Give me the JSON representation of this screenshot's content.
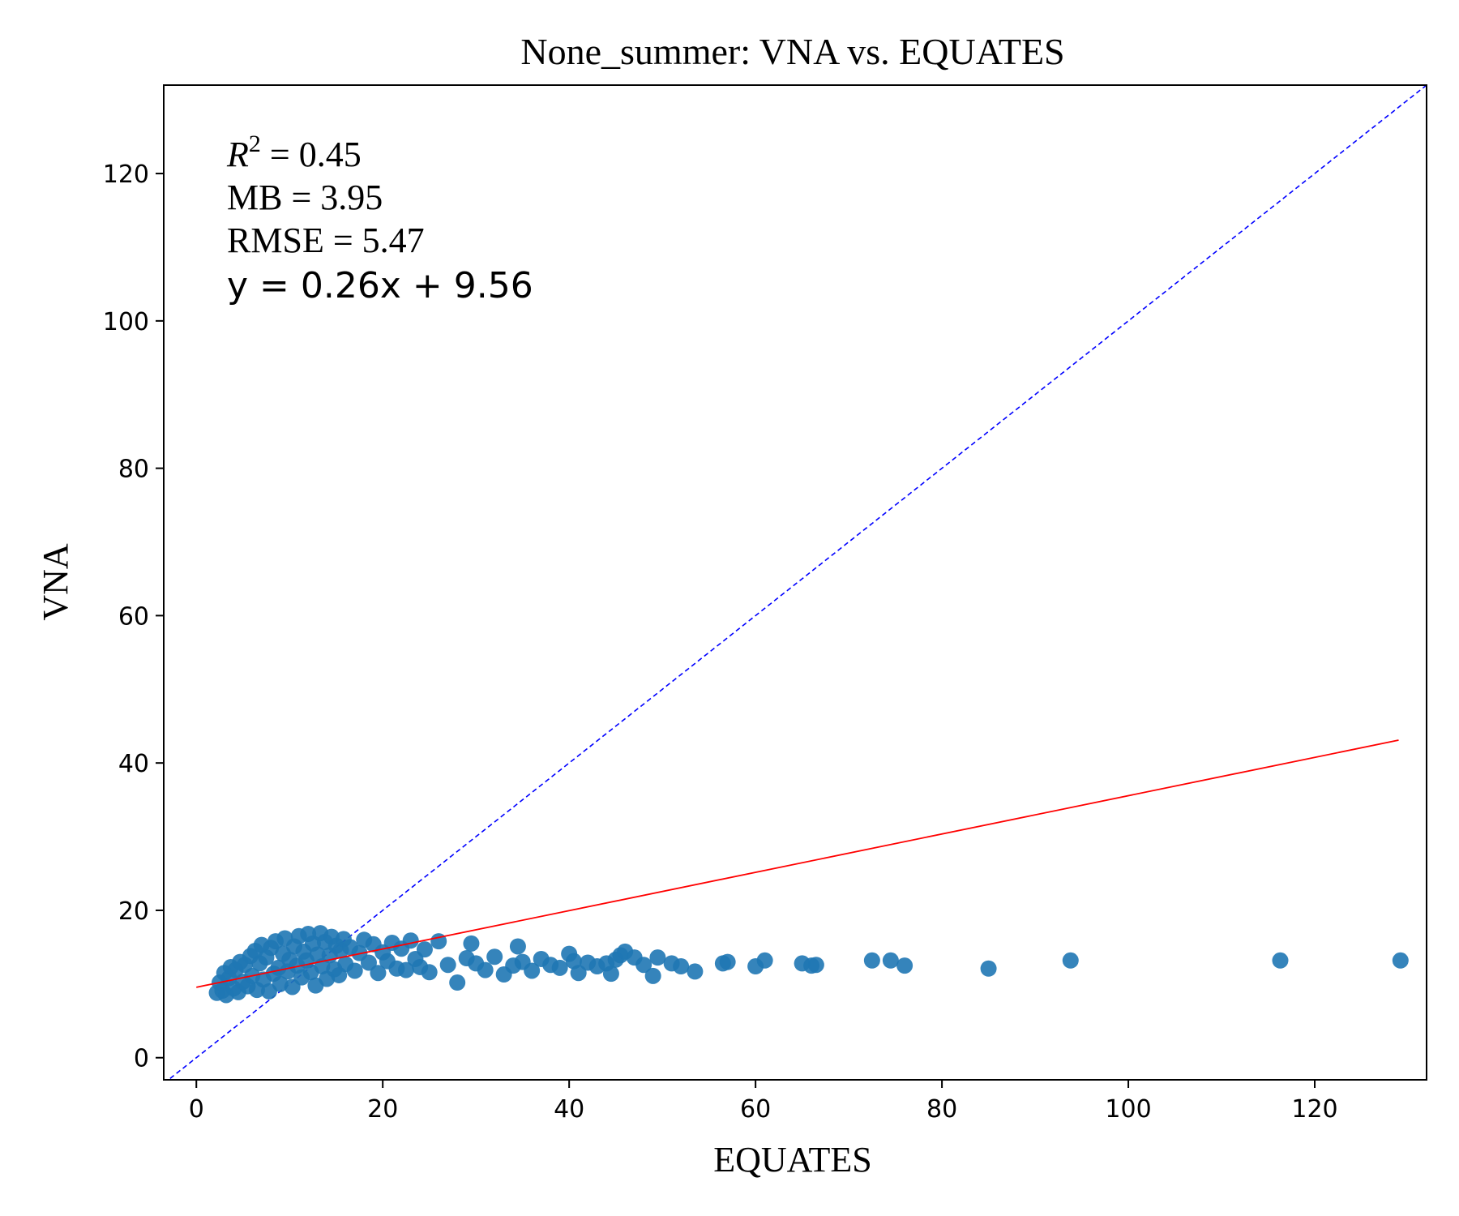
{
  "chart_data": {
    "type": "scatter",
    "title": "None_summer: VNA vs. EQUATES",
    "xlabel": "EQUATES",
    "ylabel": "VNA",
    "xlim": [
      -3.5,
      132
    ],
    "ylim": [
      -3,
      132
    ],
    "x_ticks": [
      0,
      20,
      40,
      60,
      80,
      100,
      120
    ],
    "y_ticks": [
      0,
      20,
      40,
      60,
      80,
      100,
      120
    ],
    "grid": false,
    "stats": {
      "r2_label": "R",
      "r2_sup": "2",
      "r2_value": " = 0.45",
      "mb": "MB = 3.95",
      "rmse": "RMSE = 5.47",
      "equation": "y = 0.26x + 9.56"
    },
    "regression": {
      "slope": 0.26,
      "intercept": 9.56,
      "x_range": [
        0,
        129
      ],
      "color": "#ff0000"
    },
    "one_to_one": {
      "color": "#0000ff",
      "style": "dashed"
    },
    "series": [
      {
        "marker_color": "#1f77b4",
        "points": [
          [
            2.2,
            8.8
          ],
          [
            2.5,
            10.2
          ],
          [
            2.8,
            9.1
          ],
          [
            3.0,
            11.5
          ],
          [
            3.2,
            8.5
          ],
          [
            3.5,
            10.8
          ],
          [
            3.7,
            12.3
          ],
          [
            4.0,
            9.4
          ],
          [
            4.2,
            11.9
          ],
          [
            4.5,
            8.9
          ],
          [
            4.7,
            13.0
          ],
          [
            5.0,
            10.3
          ],
          [
            5.2,
            12.6
          ],
          [
            5.5,
            9.7
          ],
          [
            5.8,
            13.8
          ],
          [
            6.0,
            11.1
          ],
          [
            6.3,
            14.5
          ],
          [
            6.5,
            9.2
          ],
          [
            6.8,
            12.8
          ],
          [
            7.0,
            15.3
          ],
          [
            7.2,
            10.6
          ],
          [
            7.5,
            13.6
          ],
          [
            7.8,
            9.0
          ],
          [
            8.0,
            14.9
          ],
          [
            8.3,
            11.4
          ],
          [
            8.5,
            15.8
          ],
          [
            8.8,
            12.2
          ],
          [
            9.0,
            10.0
          ],
          [
            9.3,
            14.1
          ],
          [
            9.5,
            16.2
          ],
          [
            9.8,
            11.7
          ],
          [
            10.0,
            13.3
          ],
          [
            10.3,
            9.6
          ],
          [
            10.5,
            15.1
          ],
          [
            10.8,
            12.5
          ],
          [
            11.0,
            16.5
          ],
          [
            11.3,
            10.9
          ],
          [
            11.5,
            14.4
          ],
          [
            11.8,
            13.2
          ],
          [
            12.0,
            16.8
          ],
          [
            12.3,
            11.6
          ],
          [
            12.5,
            15.5
          ],
          [
            12.8,
            9.8
          ],
          [
            13.0,
            14.0
          ],
          [
            13.3,
            16.9
          ],
          [
            13.5,
            12.4
          ],
          [
            13.8,
            15.7
          ],
          [
            14.0,
            10.7
          ],
          [
            14.3,
            13.9
          ],
          [
            14.5,
            16.4
          ],
          [
            14.8,
            12.0
          ],
          [
            15.0,
            15.2
          ],
          [
            15.3,
            11.2
          ],
          [
            15.5,
            14.6
          ],
          [
            15.8,
            16.1
          ],
          [
            16.0,
            12.7
          ],
          [
            16.5,
            15.0
          ],
          [
            17.0,
            11.8
          ],
          [
            17.5,
            14.2
          ],
          [
            18.0,
            16.0
          ],
          [
            18.5,
            12.9
          ],
          [
            19.0,
            15.4
          ],
          [
            19.5,
            11.5
          ],
          [
            20.0,
            14.3
          ],
          [
            20.5,
            13.1
          ],
          [
            21.0,
            15.6
          ],
          [
            21.5,
            12.1
          ],
          [
            22.0,
            14.8
          ],
          [
            22.5,
            11.9
          ],
          [
            23.0,
            15.9
          ],
          [
            23.5,
            13.4
          ],
          [
            24.0,
            12.3
          ],
          [
            24.5,
            14.7
          ],
          [
            25.0,
            11.6
          ],
          [
            26.0,
            15.8
          ],
          [
            27.0,
            12.6
          ],
          [
            28.0,
            10.2
          ],
          [
            29.0,
            13.5
          ],
          [
            29.5,
            15.5
          ],
          [
            30.0,
            12.8
          ],
          [
            31.0,
            11.9
          ],
          [
            32.0,
            13.7
          ],
          [
            33.0,
            11.3
          ],
          [
            34.0,
            12.5
          ],
          [
            34.5,
            15.1
          ],
          [
            35.0,
            13.0
          ],
          [
            36.0,
            11.8
          ],
          [
            37.0,
            13.4
          ],
          [
            38.0,
            12.6
          ],
          [
            39.0,
            12.2
          ],
          [
            40.0,
            14.1
          ],
          [
            40.5,
            13.1
          ],
          [
            41.0,
            11.5
          ],
          [
            42.0,
            12.9
          ],
          [
            43.0,
            12.4
          ],
          [
            44.0,
            12.8
          ],
          [
            44.5,
            11.4
          ],
          [
            45.0,
            13.3
          ],
          [
            45.5,
            13.9
          ],
          [
            46.0,
            14.4
          ],
          [
            47.0,
            13.6
          ],
          [
            48.0,
            12.6
          ],
          [
            49.0,
            11.1
          ],
          [
            49.5,
            13.6
          ],
          [
            51.0,
            12.8
          ],
          [
            52.0,
            12.4
          ],
          [
            53.5,
            11.7
          ],
          [
            56.5,
            12.8
          ],
          [
            57.0,
            13.0
          ],
          [
            60.0,
            12.4
          ],
          [
            61.0,
            13.2
          ],
          [
            65.0,
            12.8
          ],
          [
            66.0,
            12.5
          ],
          [
            66.5,
            12.6
          ],
          [
            72.5,
            13.2
          ],
          [
            74.5,
            13.2
          ],
          [
            76.0,
            12.5
          ],
          [
            85.0,
            12.1
          ],
          [
            93.8,
            13.2
          ],
          [
            116.3,
            13.2
          ],
          [
            129.2,
            13.2
          ]
        ]
      }
    ]
  }
}
